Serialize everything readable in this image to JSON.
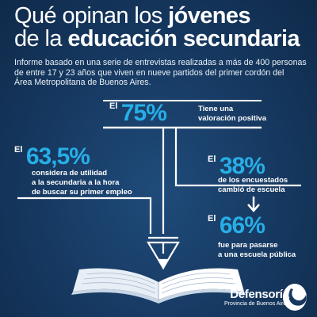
{
  "title": {
    "line1_regular": "Qué opinan los ",
    "line1_bold": "jóvenes",
    "line2_regular": "de la ",
    "line2_bold": "educación secundaria"
  },
  "subtitle": {
    "line1": "Informe basado en una serie de entrevistas realizadas a más de 400 personas",
    "line2": "de entre 17 y 23 años que viven en nueve partidos del primer cordón del",
    "line3": "Área Metropolitana de Buenos Aires."
  },
  "stats": {
    "top": {
      "prefix": "El",
      "value": "75%",
      "desc1": "Tiene una",
      "desc2": "valoración positiva"
    },
    "left": {
      "prefix": "El",
      "value": "63,5%",
      "desc1": "considera de utilidad",
      "desc2": "a la secundaria a la hora",
      "desc3": "de buscar su primer empleo"
    },
    "right1": {
      "prefix": "El",
      "value": "38%",
      "desc1": "de los encuestados",
      "desc2": "cambió de escuela"
    },
    "right2": {
      "prefix": "El",
      "value": "66%",
      "desc1": "fue para pasarse",
      "desc2": "a una escuela pública"
    }
  },
  "logo": {
    "name": "Defensoría",
    "sub": "Provincia de Buenos Aires"
  },
  "colors": {
    "background": "#163860",
    "accent": "#27aee6",
    "text": "#ffffff"
  },
  "icons": [
    "pencil-icon",
    "open-book-icon",
    "arrow-down-icon",
    "defensoria-logo-icon"
  ]
}
